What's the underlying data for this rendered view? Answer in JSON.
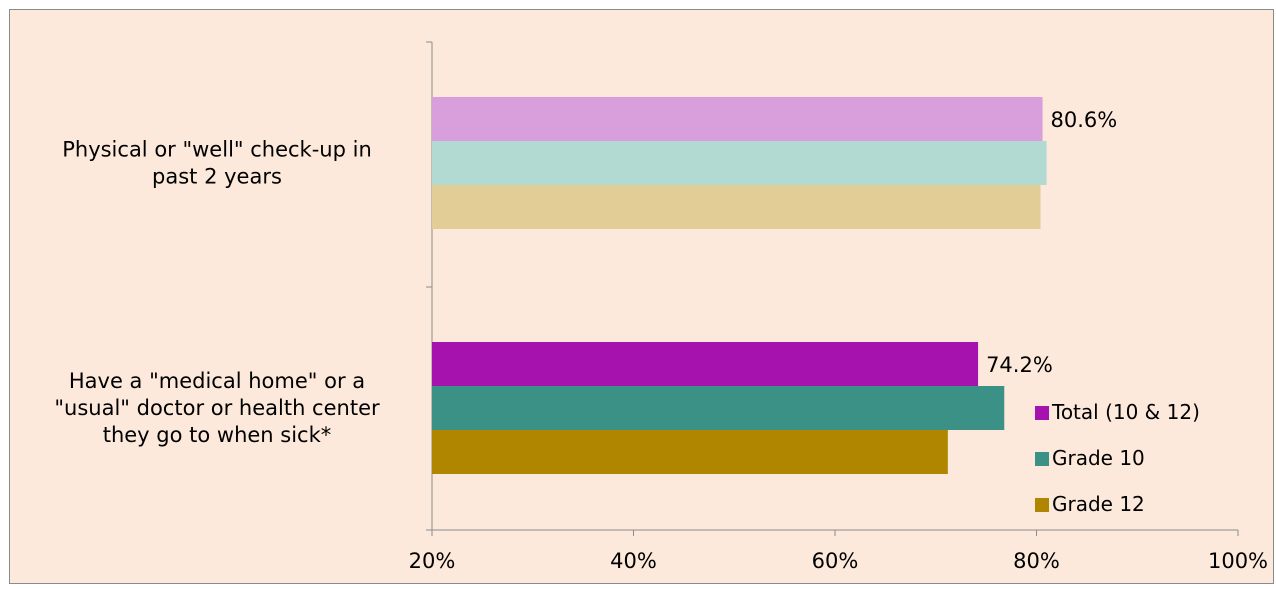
{
  "chart_data": {
    "type": "bar",
    "orientation": "horizontal",
    "categories": [
      [
        "Physical or \"well\" check-up in",
        "past 2 years"
      ],
      [
        "Have a \"medical home\" or a",
        "\"usual\" doctor or health center",
        "they go to when sick*"
      ]
    ],
    "series": [
      {
        "name": "Total (10 & 12)",
        "color": "#a612ad",
        "values": [
          80.6,
          74.2
        ]
      },
      {
        "name": "Grade 10",
        "color": "#3b9185",
        "values": [
          81.0,
          76.8
        ]
      },
      {
        "name": "Grade 12",
        "color": "#b08600",
        "values": [
          80.4,
          71.2
        ]
      }
    ],
    "faded_category_index": 0,
    "faded_colors": [
      "#d99fdd",
      "#b3d9d3",
      "#e2cd96"
    ],
    "data_labels": [
      {
        "series": 0,
        "category": 0,
        "text": "80.6%"
      },
      {
        "series": 0,
        "category": 1,
        "text": "74.2%"
      }
    ],
    "x_ticks": [
      "20%",
      "40%",
      "60%",
      "80%",
      "100%"
    ],
    "x_tick_values": [
      20,
      40,
      60,
      80,
      100
    ],
    "xlim": [
      20,
      100
    ],
    "xlabel": "",
    "ylabel": "",
    "title": "",
    "grid": false,
    "legend_position": "bottom-right"
  }
}
